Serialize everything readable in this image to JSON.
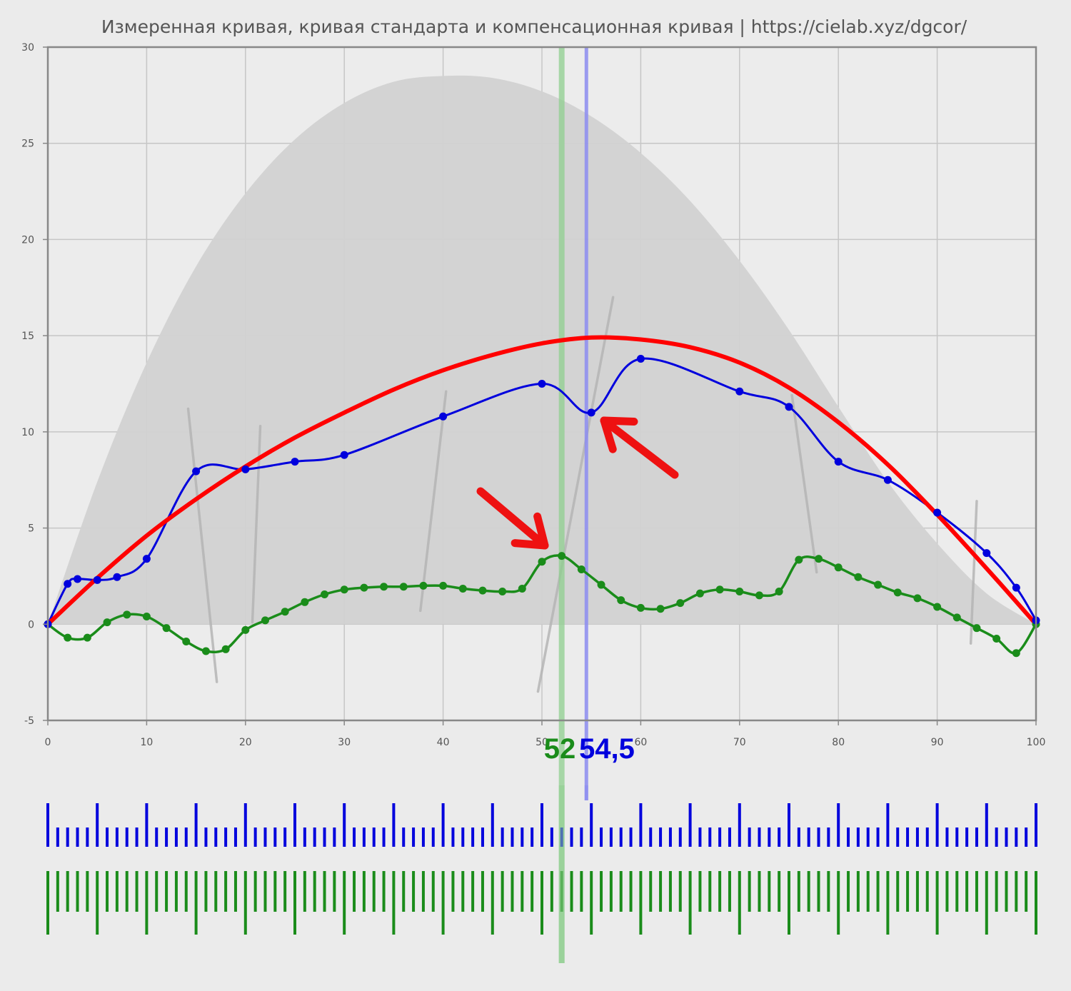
{
  "chart_data": {
    "type": "line",
    "title": "Измеренная кривая, кривая стандарта и компенсационная кривая | https://cielab.xyz/dgcor/",
    "xlabel": "",
    "ylabel": "",
    "xlim": [
      0,
      100
    ],
    "ylim": [
      -5,
      30
    ],
    "x_ticks": [
      0,
      10,
      20,
      30,
      40,
      50,
      60,
      70,
      80,
      90,
      100
    ],
    "y_ticks": [
      -5,
      0,
      5,
      10,
      15,
      20,
      25,
      30
    ],
    "grid": true,
    "colors": {
      "standard": "#ff0000",
      "measured": "#0000dd",
      "compensation": "#1a8c1a",
      "envelope": "#d2d2d2",
      "green_marker": "#8fcf8f",
      "blue_marker": "#8c8cf0"
    },
    "series": [
      {
        "key": "envelope",
        "points": [
          [
            0,
            0
          ],
          [
            5,
            7.4
          ],
          [
            10,
            13.6
          ],
          [
            15,
            18.6
          ],
          [
            20,
            22.4
          ],
          [
            25,
            25.2
          ],
          [
            30,
            27.1
          ],
          [
            35,
            28.2
          ],
          [
            40,
            28.5
          ],
          [
            45,
            28.4
          ],
          [
            50,
            27.7
          ],
          [
            55,
            26.4
          ],
          [
            60,
            24.5
          ],
          [
            65,
            22.0
          ],
          [
            70,
            18.9
          ],
          [
            75,
            15.3
          ],
          [
            80,
            11.3
          ],
          [
            85,
            7.4
          ],
          [
            90,
            4.2
          ],
          [
            95,
            1.6
          ],
          [
            100,
            0
          ]
        ]
      },
      {
        "key": "standard",
        "points": [
          [
            0,
            0
          ],
          [
            5,
            2.4
          ],
          [
            10,
            4.6
          ],
          [
            15,
            6.5
          ],
          [
            20,
            8.2
          ],
          [
            25,
            9.7
          ],
          [
            30,
            11.0
          ],
          [
            35,
            12.2
          ],
          [
            40,
            13.2
          ],
          [
            45,
            14.0
          ],
          [
            50,
            14.6
          ],
          [
            55,
            14.9
          ],
          [
            60,
            14.8
          ],
          [
            65,
            14.4
          ],
          [
            70,
            13.6
          ],
          [
            75,
            12.3
          ],
          [
            80,
            10.5
          ],
          [
            85,
            8.3
          ],
          [
            90,
            5.7
          ],
          [
            95,
            2.9
          ],
          [
            100,
            0
          ]
        ]
      },
      {
        "key": "measured",
        "points": [
          [
            0,
            0
          ],
          [
            2,
            2.1
          ],
          [
            3,
            2.35
          ],
          [
            5,
            2.3
          ],
          [
            7,
            2.45
          ],
          [
            10,
            3.4
          ],
          [
            15,
            7.95
          ],
          [
            20,
            8.05
          ],
          [
            25,
            8.45
          ],
          [
            30,
            8.8
          ],
          [
            40,
            10.8
          ],
          [
            50,
            12.5
          ],
          [
            55,
            11.0
          ],
          [
            60,
            13.8
          ],
          [
            70,
            12.1
          ],
          [
            75,
            11.3
          ],
          [
            80,
            8.45
          ],
          [
            85,
            7.5
          ],
          [
            90,
            5.8
          ],
          [
            95,
            3.7
          ],
          [
            98,
            1.9
          ],
          [
            100,
            0.2
          ]
        ]
      },
      {
        "key": "compensation",
        "points": [
          [
            0,
            0
          ],
          [
            2,
            -0.7
          ],
          [
            4,
            -0.7
          ],
          [
            6,
            0.1
          ],
          [
            8,
            0.5
          ],
          [
            10,
            0.4
          ],
          [
            12,
            -0.2
          ],
          [
            14,
            -0.9
          ],
          [
            16,
            -1.4
          ],
          [
            18,
            -1.3
          ],
          [
            20,
            -0.3
          ],
          [
            22,
            0.2
          ],
          [
            24,
            0.65
          ],
          [
            26,
            1.15
          ],
          [
            28,
            1.55
          ],
          [
            30,
            1.8
          ],
          [
            32,
            1.9
          ],
          [
            34,
            1.95
          ],
          [
            36,
            1.95
          ],
          [
            38,
            2.0
          ],
          [
            40,
            2.0
          ],
          [
            42,
            1.85
          ],
          [
            44,
            1.75
          ],
          [
            46,
            1.7
          ],
          [
            48,
            1.85
          ],
          [
            50,
            3.25
          ],
          [
            52,
            3.55
          ],
          [
            54,
            2.85
          ],
          [
            56,
            2.05
          ],
          [
            58,
            1.25
          ],
          [
            60,
            0.85
          ],
          [
            62,
            0.8
          ],
          [
            64,
            1.1
          ],
          [
            66,
            1.6
          ],
          [
            68,
            1.8
          ],
          [
            70,
            1.7
          ],
          [
            72,
            1.5
          ],
          [
            74,
            1.7
          ],
          [
            76,
            3.35
          ],
          [
            78,
            3.4
          ],
          [
            80,
            2.95
          ],
          [
            82,
            2.45
          ],
          [
            84,
            2.05
          ],
          [
            86,
            1.65
          ],
          [
            88,
            1.35
          ],
          [
            90,
            0.9
          ],
          [
            92,
            0.35
          ],
          [
            94,
            -0.2
          ],
          [
            96,
            -0.75
          ],
          [
            98,
            -1.5
          ],
          [
            100,
            0
          ]
        ]
      }
    ],
    "decorative_slashes": [
      [
        [
          14.2,
          11.2
        ],
        [
          17.1,
          -3.0
        ]
      ],
      [
        [
          21.5,
          10.3
        ],
        [
          20.7,
          0.1
        ]
      ],
      [
        [
          40.3,
          12.1
        ],
        [
          37.7,
          0.7
        ]
      ],
      [
        [
          57.2,
          17.0
        ],
        [
          49.6,
          -3.5
        ]
      ],
      [
        [
          75.3,
          11.9
        ],
        [
          77.8,
          2.7
        ]
      ],
      [
        [
          94.0,
          6.4
        ],
        [
          93.4,
          -1.0
        ]
      ]
    ],
    "markers": {
      "green": {
        "x": 52,
        "label": "52"
      },
      "blue": {
        "x": 54.5,
        "label": "54,5"
      }
    },
    "scales": {
      "blue": {
        "from": 0,
        "to": 100,
        "step": 1,
        "major_every": 5
      },
      "green": {
        "from": 0,
        "to": 100,
        "step": 1,
        "major_every": 5
      }
    }
  }
}
